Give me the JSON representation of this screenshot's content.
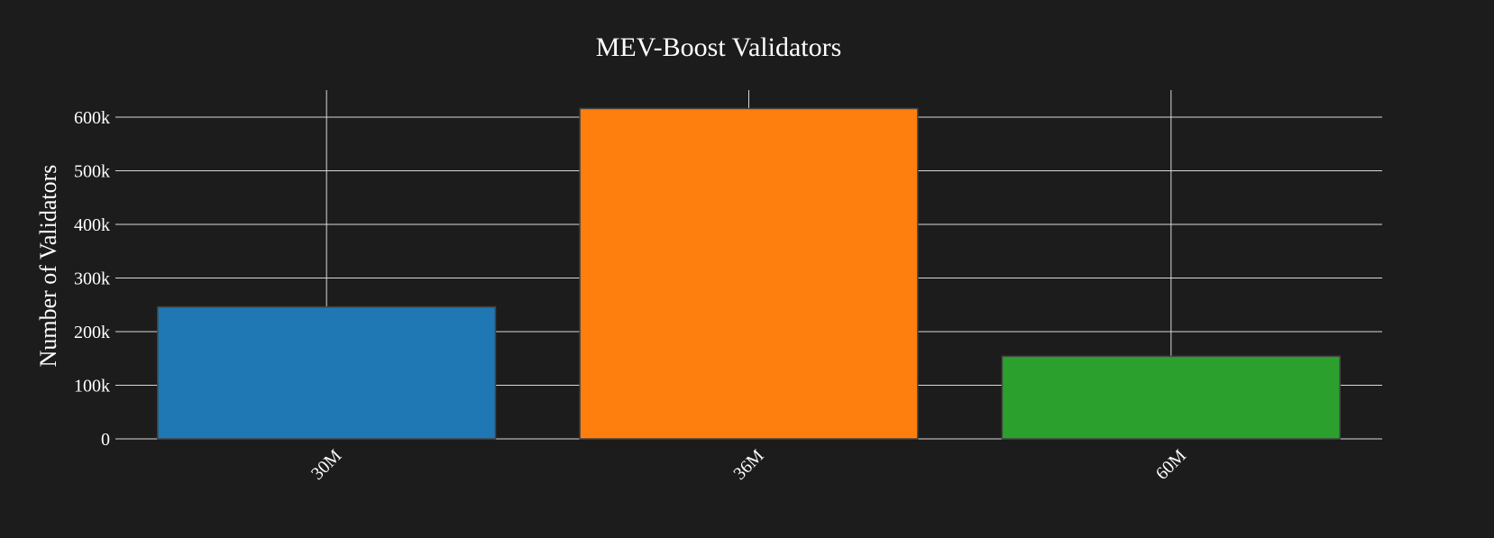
{
  "chart_data": {
    "type": "bar",
    "title": "MEV-Boost Validators",
    "xlabel": "",
    "ylabel": "Number of Validators",
    "categories": [
      "30M",
      "36M",
      "60M"
    ],
    "values": [
      246000,
      616000,
      154000
    ],
    "ylim": [
      0,
      650000
    ],
    "yticks": [
      0,
      100000,
      200000,
      300000,
      400000,
      500000,
      600000
    ],
    "ytick_labels": [
      "0",
      "100k",
      "200k",
      "300k",
      "400k",
      "500k",
      "600k"
    ],
    "bar_colors": [
      "#1f77b4",
      "#ff7f0e",
      "#2ca02c"
    ],
    "grid": true,
    "legend": "none",
    "x_tick_rotation_deg": -45
  },
  "colors": {
    "background": "#1c1c1c",
    "grid": "#d9d9d9",
    "text": "#ffffff"
  }
}
